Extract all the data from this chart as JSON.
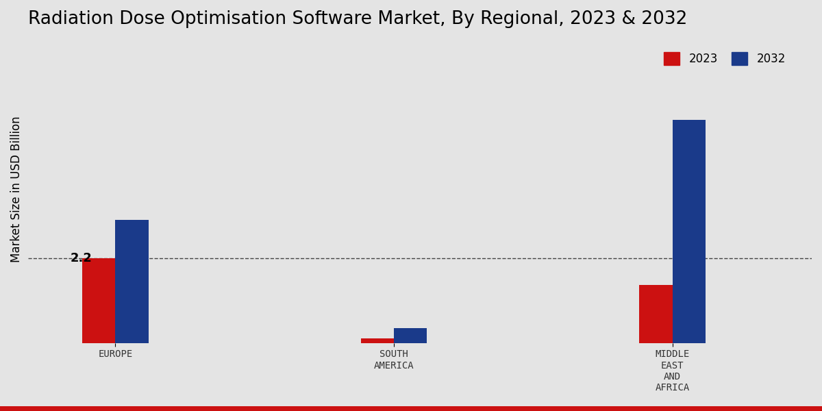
{
  "title": "Radiation Dose Optimisation Software Market, By Regional, 2023 & 2032",
  "ylabel": "Market Size in USD Billion",
  "categories": [
    "EUROPE",
    "SOUTH\nAMERICA",
    "MIDDLE\nEAST\nAND\nAFRICA"
  ],
  "values_2023": [
    2.2,
    0.12,
    1.5
  ],
  "values_2032": [
    3.2,
    0.38,
    5.8
  ],
  "color_2023": "#cc1111",
  "color_2032": "#1a3a8a",
  "dashed_line_y": 2.2,
  "annotation_text": "2.2",
  "background_color": "#e4e4e4",
  "title_fontsize": 19,
  "axis_label_fontsize": 12,
  "tick_label_fontsize": 10,
  "legend_fontsize": 12,
  "bar_width": 0.38,
  "ylim": [
    0,
    8.0
  ]
}
